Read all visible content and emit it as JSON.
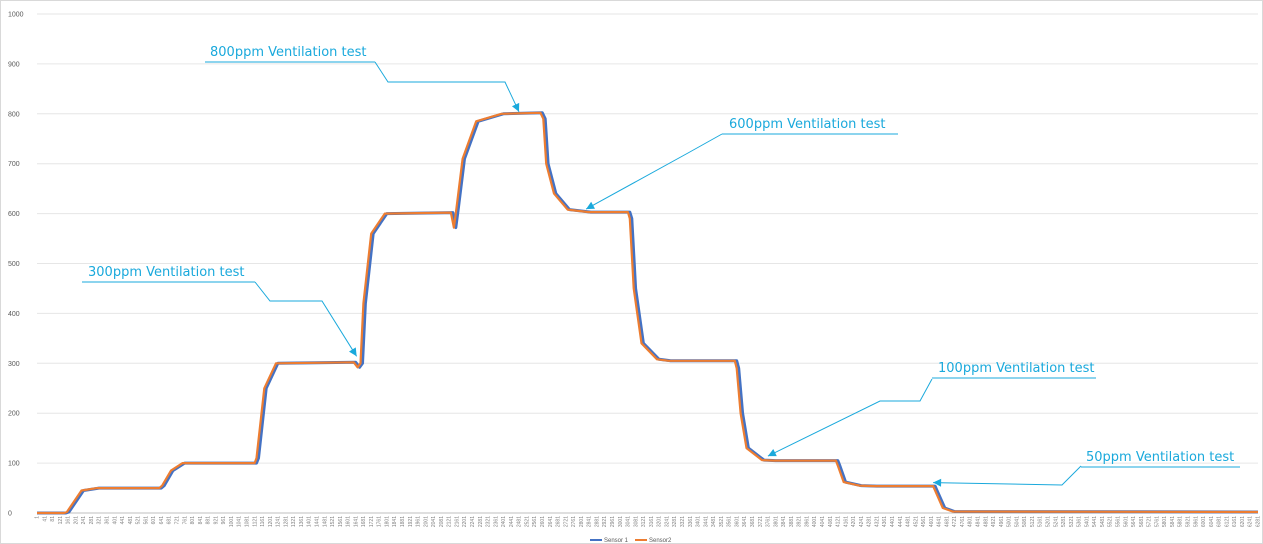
{
  "chart_data": {
    "type": "line",
    "title": "",
    "xlabel": "",
    "ylabel": "",
    "xlim": [
      1,
      6281
    ],
    "ylim": [
      0,
      1000
    ],
    "y_ticks": [
      0,
      100,
      200,
      300,
      400,
      500,
      600,
      700,
      800,
      900,
      1000
    ],
    "x_tick_start": 1,
    "x_tick_step": 40,
    "grid": "horizontal",
    "legend_position": "bottom",
    "series": [
      {
        "name": "Sensor 1",
        "color": "#4472c4",
        "points": [
          [
            1,
            0
          ],
          [
            150,
            0
          ],
          [
            165,
            2
          ],
          [
            240,
            45
          ],
          [
            320,
            50
          ],
          [
            640,
            50
          ],
          [
            655,
            55
          ],
          [
            700,
            85
          ],
          [
            760,
            100
          ],
          [
            1130,
            100
          ],
          [
            1140,
            110
          ],
          [
            1180,
            250
          ],
          [
            1240,
            300
          ],
          [
            1640,
            302
          ],
          [
            1660,
            292
          ],
          [
            1675,
            300
          ],
          [
            1690,
            420
          ],
          [
            1730,
            560
          ],
          [
            1800,
            600
          ],
          [
            2140,
            602
          ],
          [
            2155,
            572
          ],
          [
            2168,
            610
          ],
          [
            2200,
            710
          ],
          [
            2270,
            785
          ],
          [
            2400,
            800
          ],
          [
            2600,
            802
          ],
          [
            2615,
            790
          ],
          [
            2630,
            700
          ],
          [
            2670,
            640
          ],
          [
            2740,
            608
          ],
          [
            2850,
            603
          ],
          [
            3050,
            603
          ],
          [
            3060,
            590
          ],
          [
            3080,
            450
          ],
          [
            3120,
            340
          ],
          [
            3200,
            308
          ],
          [
            3260,
            305
          ],
          [
            3600,
            305
          ],
          [
            3610,
            290
          ],
          [
            3630,
            200
          ],
          [
            3660,
            130
          ],
          [
            3740,
            106
          ],
          [
            3800,
            105
          ],
          [
            4120,
            105
          ],
          [
            4130,
            95
          ],
          [
            4160,
            62
          ],
          [
            4240,
            55
          ],
          [
            4320,
            54
          ],
          [
            4620,
            54
          ],
          [
            4630,
            45
          ],
          [
            4670,
            10
          ],
          [
            4720,
            3
          ],
          [
            6281,
            2
          ]
        ]
      },
      {
        "name": "Sensor2",
        "color": "#ed7d31",
        "points": [
          [
            1,
            0
          ],
          [
            140,
            0
          ],
          [
            155,
            2
          ],
          [
            230,
            45
          ],
          [
            310,
            50
          ],
          [
            630,
            50
          ],
          [
            645,
            55
          ],
          [
            690,
            85
          ],
          [
            750,
            100
          ],
          [
            1120,
            100
          ],
          [
            1130,
            110
          ],
          [
            1170,
            250
          ],
          [
            1230,
            300
          ],
          [
            1630,
            302
          ],
          [
            1650,
            292
          ],
          [
            1665,
            300
          ],
          [
            1680,
            420
          ],
          [
            1720,
            560
          ],
          [
            1790,
            600
          ],
          [
            2130,
            602
          ],
          [
            2145,
            572
          ],
          [
            2158,
            610
          ],
          [
            2190,
            710
          ],
          [
            2260,
            785
          ],
          [
            2390,
            800
          ],
          [
            2590,
            802
          ],
          [
            2605,
            790
          ],
          [
            2620,
            700
          ],
          [
            2660,
            640
          ],
          [
            2730,
            608
          ],
          [
            2840,
            603
          ],
          [
            3040,
            603
          ],
          [
            3050,
            590
          ],
          [
            3070,
            450
          ],
          [
            3110,
            340
          ],
          [
            3190,
            308
          ],
          [
            3250,
            305
          ],
          [
            3590,
            305
          ],
          [
            3600,
            290
          ],
          [
            3620,
            200
          ],
          [
            3650,
            130
          ],
          [
            3730,
            106
          ],
          [
            3790,
            105
          ],
          [
            4110,
            105
          ],
          [
            4120,
            95
          ],
          [
            4150,
            62
          ],
          [
            4230,
            55
          ],
          [
            4310,
            54
          ],
          [
            4610,
            54
          ],
          [
            4620,
            45
          ],
          [
            4660,
            10
          ],
          [
            4710,
            3
          ],
          [
            6281,
            2
          ]
        ]
      }
    ],
    "annotations": [
      {
        "text": "800ppm Ventilation test",
        "x": 2480,
        "y": 800
      },
      {
        "text": "600ppm Ventilation test",
        "x": 2825,
        "y": 605
      },
      {
        "text": "300ppm Ventilation test",
        "x": 1645,
        "y": 310
      },
      {
        "text": "100ppm Ventilation test",
        "x": 3760,
        "y": 110
      },
      {
        "text": "50ppm Ventilation test",
        "x": 4610,
        "y": 57
      }
    ]
  }
}
